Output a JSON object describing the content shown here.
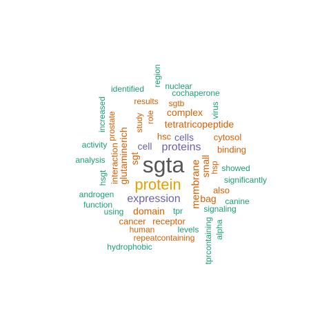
{
  "colors": {
    "dark_gray": "#555555",
    "gold": "#e6a100",
    "purple": "#6a5fae",
    "orange": "#d95f02",
    "teal": "#1b9e77"
  },
  "words": [
    {
      "id": "sgta",
      "text": "sgta",
      "color": "dark_gray",
      "orientation": "h"
    },
    {
      "id": "protein",
      "text": "protein",
      "color": "gold",
      "orientation": "h"
    },
    {
      "id": "expression",
      "text": "expression",
      "color": "purple",
      "orientation": "h"
    },
    {
      "id": "proteins",
      "text": "proteins",
      "color": "purple",
      "orientation": "h"
    },
    {
      "id": "cells",
      "text": "cells",
      "color": "purple",
      "orientation": "h"
    },
    {
      "id": "cell",
      "text": "cell",
      "color": "purple",
      "orientation": "h"
    },
    {
      "id": "tetratricopeptide",
      "text": "tetratricopeptide",
      "color": "orange",
      "orientation": "h"
    },
    {
      "id": "complex",
      "text": "complex",
      "color": "orange",
      "orientation": "h"
    },
    {
      "id": "domain",
      "text": "domain",
      "color": "orange",
      "orientation": "h"
    },
    {
      "id": "receptor",
      "text": "receptor",
      "color": "orange",
      "orientation": "h"
    },
    {
      "id": "cancer",
      "text": "cancer",
      "color": "orange",
      "orientation": "h"
    },
    {
      "id": "membrane",
      "text": "membrane",
      "color": "orange",
      "orientation": "v"
    },
    {
      "id": "glutaminerich",
      "text": "glutaminerich",
      "color": "orange",
      "orientation": "v"
    },
    {
      "id": "interaction",
      "text": "interaction",
      "color": "orange",
      "orientation": "v"
    },
    {
      "id": "small",
      "text": "small",
      "color": "orange",
      "orientation": "v"
    },
    {
      "id": "sgt",
      "text": "sgt",
      "color": "orange",
      "orientation": "v"
    },
    {
      "id": "bag",
      "text": "bag",
      "color": "orange",
      "orientation": "h"
    },
    {
      "id": "also",
      "text": "also",
      "color": "orange",
      "orientation": "h"
    },
    {
      "id": "binding",
      "text": "binding",
      "color": "orange",
      "orientation": "h"
    },
    {
      "id": "cytosol",
      "text": "cytosol",
      "color": "orange",
      "orientation": "h"
    },
    {
      "id": "human",
      "text": "human",
      "color": "orange",
      "orientation": "h"
    },
    {
      "id": "repeatcontaining",
      "text": "repeatcontaining",
      "color": "orange",
      "orientation": "h"
    },
    {
      "id": "role",
      "text": "role",
      "color": "orange",
      "orientation": "v"
    },
    {
      "id": "sgtb",
      "text": "sgtb",
      "color": "orange",
      "orientation": "h"
    },
    {
      "id": "results",
      "text": "results",
      "color": "orange",
      "orientation": "h"
    },
    {
      "id": "prostate",
      "text": "prostate",
      "color": "orange",
      "orientation": "v"
    },
    {
      "id": "study",
      "text": "study",
      "color": "orange",
      "orientation": "v"
    },
    {
      "id": "hsc",
      "text": "hsc",
      "color": "orange",
      "orientation": "h"
    },
    {
      "id": "hsp",
      "text": "hsp",
      "color": "orange",
      "orientation": "v"
    },
    {
      "id": "region",
      "text": "region",
      "color": "teal",
      "orientation": "v"
    },
    {
      "id": "nuclear",
      "text": "nuclear",
      "color": "teal",
      "orientation": "h"
    },
    {
      "id": "identified",
      "text": "identified",
      "color": "teal",
      "orientation": "h"
    },
    {
      "id": "cochaperone",
      "text": "cochaperone",
      "color": "teal",
      "orientation": "h"
    },
    {
      "id": "virus",
      "text": "virus",
      "color": "teal",
      "orientation": "v"
    },
    {
      "id": "increased",
      "text": "increased",
      "color": "teal",
      "orientation": "v"
    },
    {
      "id": "activity",
      "text": "activity",
      "color": "teal",
      "orientation": "h"
    },
    {
      "id": "analysis",
      "text": "analysis",
      "color": "teal",
      "orientation": "h"
    },
    {
      "id": "hsgt",
      "text": "hsgt",
      "color": "teal",
      "orientation": "v"
    },
    {
      "id": "androgen",
      "text": "androgen",
      "color": "teal",
      "orientation": "h"
    },
    {
      "id": "function",
      "text": "function",
      "color": "teal",
      "orientation": "h"
    },
    {
      "id": "using",
      "text": "using",
      "color": "teal",
      "orientation": "h"
    },
    {
      "id": "tpr",
      "text": "tpr",
      "color": "teal",
      "orientation": "h"
    },
    {
      "id": "levels",
      "text": "levels",
      "color": "teal",
      "orientation": "h"
    },
    {
      "id": "showed",
      "text": "showed",
      "color": "teal",
      "orientation": "h"
    },
    {
      "id": "significantly",
      "text": "significantly",
      "color": "teal",
      "orientation": "h"
    },
    {
      "id": "canine",
      "text": "canine",
      "color": "teal",
      "orientation": "h"
    },
    {
      "id": "signaling",
      "text": "signaling",
      "color": "teal",
      "orientation": "h"
    },
    {
      "id": "alpha",
      "text": "alpha",
      "color": "teal",
      "orientation": "v"
    },
    {
      "id": "tprcontaining",
      "text": "tprcontaining",
      "color": "teal",
      "orientation": "v"
    },
    {
      "id": "hydrophobic",
      "text": "hydrophobic",
      "color": "teal",
      "orientation": "h"
    }
  ]
}
